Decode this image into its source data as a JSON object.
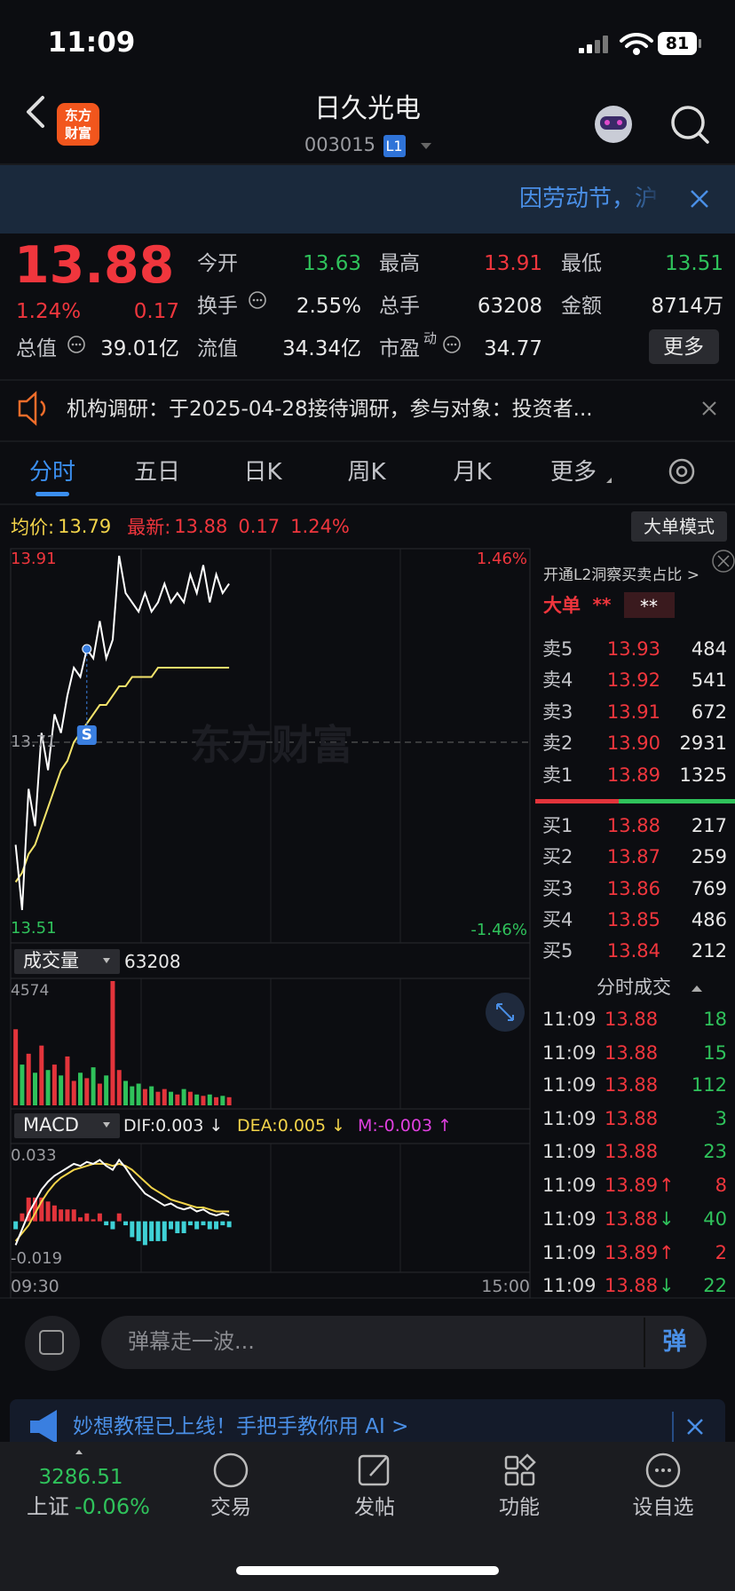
{
  "status_bar": {
    "time": "11:09",
    "battery": "81"
  },
  "header": {
    "logo": [
      "东方",
      "财富"
    ],
    "title": "日久光电",
    "code": "003015",
    "level": "L1"
  },
  "banner": {
    "text": "因劳动节，沪"
  },
  "quote": {
    "price": "13.88",
    "change_pct": "1.24%",
    "change": "0.17",
    "color": "#f0363d",
    "fields": [
      {
        "label": "今开",
        "value": "13.63",
        "color": "#2fc25b"
      },
      {
        "label": "最高",
        "value": "13.91",
        "color": "#f0363d"
      },
      {
        "label": "最低",
        "value": "13.51",
        "color": "#2fc25b"
      },
      {
        "label": "换手",
        "value": "2.55%"
      },
      {
        "label": "总手",
        "value": "63208"
      },
      {
        "label": "金额",
        "value": "8714万"
      },
      {
        "label": "总值",
        "value": "39.01亿"
      },
      {
        "label": "流值",
        "value": "34.34亿"
      },
      {
        "label": "市盈",
        "superscript": "动",
        "value": "34.77"
      }
    ],
    "more_button": "更多"
  },
  "notice": {
    "text": "机构调研：于2025-04-28接待调研，参与对象：投资者..."
  },
  "tabs": {
    "items": [
      "分时",
      "五日",
      "日K",
      "周K",
      "月K",
      "更多"
    ],
    "active": 0
  },
  "chart_info": {
    "avg_label": "均价:",
    "avg": "13.79",
    "latest_label": "最新:",
    "latest": "13.88",
    "change": "0.17",
    "change_pct": "1.24%",
    "mode_button": "大单模式"
  },
  "intraday_chart": {
    "ylim": [
      13.51,
      13.91
    ],
    "yticks": [
      13.51,
      13.71,
      13.91
    ],
    "right_labels": [
      "1.46%",
      "-1.46%"
    ],
    "watermark": "东方财富",
    "marker": "S",
    "price_color": "#ffffff",
    "avg_color": "#f3e36b",
    "price": [
      13.6,
      13.53,
      13.66,
      13.62,
      13.72,
      13.68,
      13.74,
      13.72,
      13.76,
      13.79,
      13.78,
      13.81,
      13.8,
      13.84,
      13.8,
      13.82,
      13.91,
      13.87,
      13.86,
      13.85,
      13.87,
      13.85,
      13.86,
      13.88,
      13.86,
      13.87,
      13.86,
      13.89,
      13.87,
      13.9,
      13.86,
      13.89,
      13.87,
      13.88
    ],
    "avg": [
      13.56,
      13.57,
      13.59,
      13.6,
      13.62,
      13.64,
      13.66,
      13.68,
      13.69,
      13.71,
      13.72,
      13.73,
      13.74,
      13.75,
      13.75,
      13.76,
      13.77,
      13.77,
      13.78,
      13.78,
      13.78,
      13.78,
      13.79,
      13.79,
      13.79,
      13.79,
      13.79,
      13.79,
      13.79,
      13.79,
      13.79,
      13.79,
      13.79,
      13.79
    ]
  },
  "volume_chart": {
    "label": "成交量",
    "total": "63208",
    "ylim": [
      0,
      4574
    ],
    "yticks": [
      4574
    ],
    "values": [
      2800,
      1500,
      1900,
      1200,
      2200,
      1300,
      1500,
      1100,
      1800,
      900,
      1200,
      1000,
      1400,
      800,
      1100,
      4574,
      1300,
      900,
      700,
      800,
      600,
      700,
      500,
      600,
      500,
      400,
      600,
      500,
      400,
      350,
      400,
      300,
      350,
      300
    ]
  },
  "macd_chart": {
    "label": "MACD",
    "dif_label": "DIF:0.003 ↓",
    "dea_label": "DEA:0.005 ↓",
    "m_label": "M:-0.003 ↑",
    "ylim": [
      -0.019,
      0.033
    ],
    "yticks": [
      -0.019,
      0.033
    ],
    "time_labels": [
      "09:30",
      "15:00"
    ],
    "dif": [
      -0.012,
      -0.004,
      0.004,
      0.01,
      0.016,
      0.02,
      0.023,
      0.025,
      0.027,
      0.029,
      0.028,
      0.03,
      0.029,
      0.031,
      0.028,
      0.026,
      0.031,
      0.027,
      0.022,
      0.018,
      0.014,
      0.012,
      0.01,
      0.008,
      0.009,
      0.007,
      0.006,
      0.007,
      0.005,
      0.006,
      0.004,
      0.003,
      0.004,
      0.003
    ],
    "dea": [
      -0.01,
      -0.006,
      -0.002,
      0.004,
      0.01,
      0.015,
      0.019,
      0.022,
      0.024,
      0.026,
      0.027,
      0.028,
      0.029,
      0.029,
      0.029,
      0.028,
      0.029,
      0.028,
      0.026,
      0.023,
      0.02,
      0.017,
      0.015,
      0.013,
      0.011,
      0.01,
      0.009,
      0.008,
      0.007,
      0.007,
      0.006,
      0.005,
      0.005,
      0.005
    ],
    "hist": [
      -0.004,
      0.004,
      0.012,
      0.012,
      0.012,
      0.01,
      0.008,
      0.006,
      0.006,
      0.006,
      0.002,
      0.004,
      0.001,
      0.004,
      -0.002,
      -0.004,
      0.004,
      -0.002,
      -0.008,
      -0.01,
      -0.012,
      -0.01,
      -0.01,
      -0.01,
      -0.004,
      -0.006,
      -0.006,
      -0.002,
      -0.004,
      -0.002,
      -0.004,
      -0.004,
      -0.002,
      -0.003
    ]
  },
  "order_book": {
    "l2_text": "开通L2洞察买卖占比 >",
    "big_order_label": "大单",
    "big_order_values": [
      "**",
      "**"
    ],
    "asks": [
      {
        "label": "卖5",
        "price": "13.93",
        "volume": "484"
      },
      {
        "label": "卖4",
        "price": "13.92",
        "volume": "541"
      },
      {
        "label": "卖3",
        "price": "13.91",
        "volume": "672"
      },
      {
        "label": "卖2",
        "price": "13.90",
        "volume": "2931"
      },
      {
        "label": "卖1",
        "price": "13.89",
        "volume": "1325"
      }
    ],
    "bids": [
      {
        "label": "买1",
        "price": "13.88",
        "volume": "217"
      },
      {
        "label": "买2",
        "price": "13.87",
        "volume": "259"
      },
      {
        "label": "买3",
        "price": "13.86",
        "volume": "769"
      },
      {
        "label": "买4",
        "price": "13.85",
        "volume": "486"
      },
      {
        "label": "买5",
        "price": "13.84",
        "volume": "212"
      }
    ]
  },
  "trades": {
    "title": "分时成交",
    "rows": [
      {
        "time": "11:09",
        "price": "13.88",
        "volume": "18",
        "color": "#2fc25b"
      },
      {
        "time": "11:09",
        "price": "13.88",
        "volume": "15",
        "color": "#2fc25b"
      },
      {
        "time": "11:09",
        "price": "13.88",
        "volume": "112",
        "color": "#2fc25b"
      },
      {
        "time": "11:09",
        "price": "13.88",
        "volume": "3",
        "color": "#2fc25b"
      },
      {
        "time": "11:09",
        "price": "13.88",
        "volume": "23",
        "color": "#2fc25b"
      },
      {
        "time": "11:09",
        "price": "13.89",
        "arrow": "↑",
        "volume": "8",
        "color": "#f0363d"
      },
      {
        "time": "11:09",
        "price": "13.88",
        "arrow": "↓",
        "volume": "40",
        "color": "#2fc25b"
      },
      {
        "time": "11:09",
        "price": "13.89",
        "arrow": "↑",
        "volume": "2",
        "color": "#f0363d"
      },
      {
        "time": "11:09",
        "price": "13.88",
        "arrow": "↓",
        "volume": "22",
        "color": "#2fc25b"
      }
    ]
  },
  "comment": {
    "placeholder": "弹幕走一波...",
    "button": "弹"
  },
  "promo": {
    "text": "妙想教程已上线！手把手教你用 AI >"
  },
  "bottom_nav": {
    "index_value": "3286.51",
    "index_name": "上证",
    "index_change": "-0.06%",
    "items": [
      "交易",
      "发帖",
      "功能",
      "设自选"
    ]
  }
}
